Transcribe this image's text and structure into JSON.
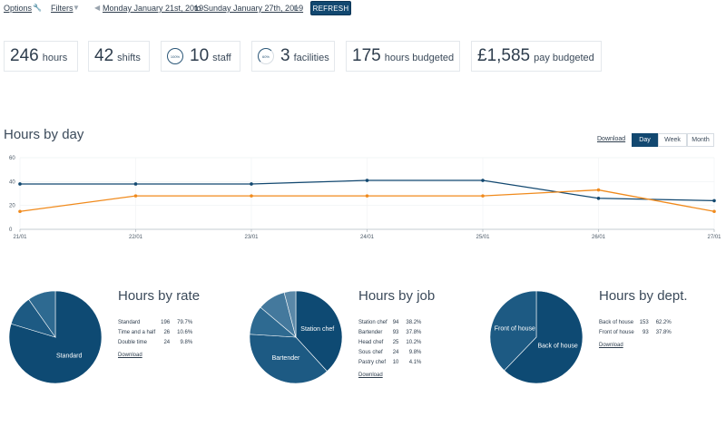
{
  "toolbar": {
    "options_label": "Options",
    "filters_label": "Filters",
    "start_date": "Monday January 21st, 2019",
    "to_label": "to",
    "end_date": "Sunday January 27th, 2019",
    "refresh_label": "REFRESH"
  },
  "stats": [
    {
      "value": "246",
      "unit": "hours"
    },
    {
      "value": "42",
      "unit": "shifts"
    },
    {
      "value": "10",
      "unit": "staff",
      "ring_label": "100%"
    },
    {
      "value": "3",
      "unit": "facilities",
      "ring_label": "60%"
    },
    {
      "value": "175",
      "unit": "hours budgeted"
    },
    {
      "value": "£1,585",
      "unit": "pay budgeted"
    }
  ],
  "hours_by_day": {
    "title": "Hours by day",
    "download_label": "Download",
    "views": [
      "Day",
      "Week",
      "Month"
    ],
    "active_view": "Day"
  },
  "chart_data": [
    {
      "type": "line",
      "title": "Hours by day",
      "x": [
        "21/01",
        "22/01",
        "23/01",
        "24/01",
        "25/01",
        "26/01",
        "27/01"
      ],
      "ylim": [
        0,
        60
      ],
      "yticks": [
        0,
        20,
        40,
        60
      ],
      "grid": true,
      "series": [
        {
          "color": "#124870",
          "values": [
            38,
            38,
            38,
            41,
            41,
            26,
            24
          ]
        },
        {
          "color": "#f08a1c",
          "values": [
            15,
            28,
            28,
            28,
            28,
            33,
            15
          ]
        }
      ]
    },
    {
      "type": "pie",
      "title": "Hours by rate",
      "slices": [
        {
          "label": "Standard",
          "value": 196,
          "pct": "79.7%"
        },
        {
          "label": "Time and a half",
          "value": 26,
          "pct": "10.6%"
        },
        {
          "label": "Double time",
          "value": 24,
          "pct": "9.8%"
        }
      ]
    },
    {
      "type": "pie",
      "title": "Hours by job",
      "slices": [
        {
          "label": "Station chef",
          "value": 94,
          "pct": "38.2%"
        },
        {
          "label": "Bartender",
          "value": 93,
          "pct": "37.8%"
        },
        {
          "label": "Head chef",
          "value": 25,
          "pct": "10.2%"
        },
        {
          "label": "Sous chef",
          "value": 24,
          "pct": "9.8%"
        },
        {
          "label": "Pastry chef",
          "value": 10,
          "pct": "4.1%"
        }
      ]
    },
    {
      "type": "pie",
      "title": "Hours by dept.",
      "slices": [
        {
          "label": "Back of house",
          "value": 153,
          "pct": "62.2%"
        },
        {
          "label": "Front of house",
          "value": 93,
          "pct": "37.8%"
        }
      ]
    }
  ],
  "download_label": "Download",
  "colors": {
    "primary": "#124870",
    "accent": "#f08a1c",
    "pie_shades": [
      "#0e4a73",
      "#1d5a83",
      "#2e6a91",
      "#44799d",
      "#5a88a8"
    ]
  }
}
